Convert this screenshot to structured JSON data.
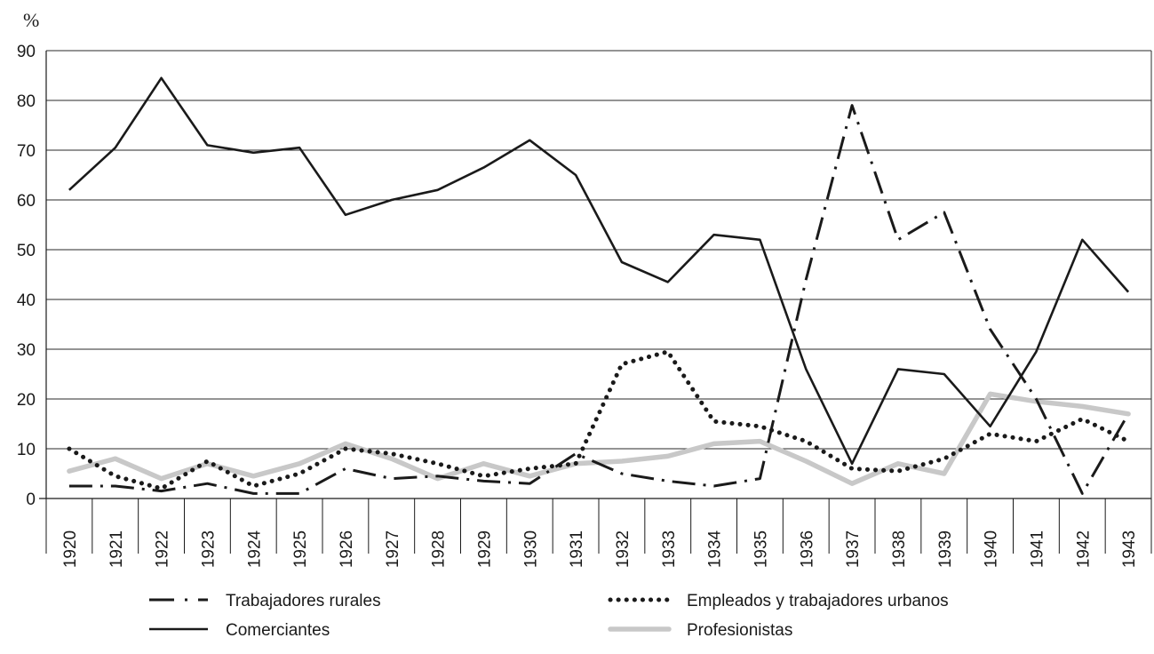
{
  "chart_data": {
    "type": "line",
    "title": "",
    "ylabel": "%",
    "xlabel": "",
    "ylim": [
      0,
      90
    ],
    "yticks": [
      "0",
      "10",
      "20",
      "30",
      "40",
      "50",
      "60",
      "70",
      "80",
      "90"
    ],
    "categories": [
      "1920",
      "1921",
      "1922",
      "1923",
      "1924",
      "1925",
      "1926",
      "1927",
      "1928",
      "1929",
      "1930",
      "1931",
      "1932",
      "1933",
      "1934",
      "1935",
      "1936",
      "1937",
      "1938",
      "1939",
      "1940",
      "1941",
      "1942",
      "1943"
    ],
    "grid": true,
    "legend_position": "bottom",
    "series": [
      {
        "name": "Trabajadores rurales",
        "style": "dash-dot",
        "color": "#1a1a1a",
        "values": [
          2.5,
          2.5,
          1.5,
          3,
          1,
          1,
          6,
          4,
          4.5,
          3.5,
          3,
          9,
          5,
          3.5,
          2.5,
          4,
          44,
          79,
          52,
          57.5,
          34,
          20,
          1,
          17
        ]
      },
      {
        "name": "Comerciantes",
        "style": "solid",
        "color": "#1a1a1a",
        "values": [
          62,
          70.5,
          84.5,
          71,
          69.5,
          70.5,
          57,
          60,
          62,
          66.5,
          72,
          65,
          47.5,
          43.5,
          53,
          52,
          26,
          7,
          26,
          25,
          14.5,
          29.5,
          52,
          41.5
        ]
      },
      {
        "name": "Empleados y trabajadores urbanos",
        "style": "dotted",
        "color": "#1a1a1a",
        "values": [
          10,
          4.5,
          2,
          7.5,
          2.5,
          5,
          10,
          9,
          7,
          4.5,
          6,
          7,
          27,
          29.5,
          15.5,
          14.5,
          11.5,
          6,
          5.5,
          8,
          13,
          11.5,
          16,
          11.5
        ]
      },
      {
        "name": "Profesionistas",
        "style": "thick-light",
        "color": "#c8c8c8",
        "values": [
          5.5,
          8,
          4,
          7,
          4.5,
          7,
          11,
          8,
          4,
          7,
          4.5,
          7,
          7.5,
          8.5,
          11,
          11.5,
          7.5,
          3,
          7,
          5,
          21,
          19.5,
          18.5,
          17
        ]
      }
    ]
  }
}
